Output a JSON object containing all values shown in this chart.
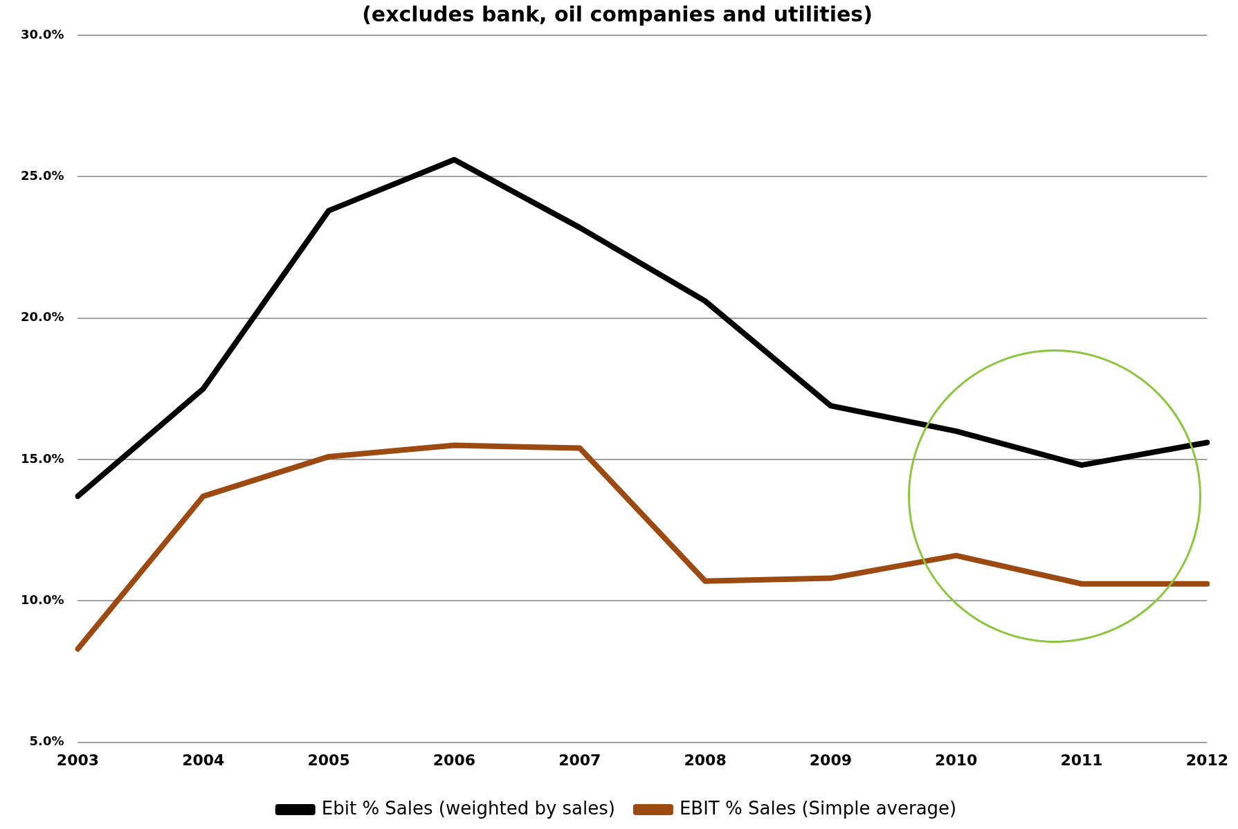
{
  "chart_data": {
    "type": "line",
    "title": "(excludes bank, oil companies and utilities)",
    "categories": [
      "2003",
      "2004",
      "2005",
      "2006",
      "2007",
      "2008",
      "2009",
      "2010",
      "2011",
      "2012"
    ],
    "series": [
      {
        "name": "Ebit % Sales (weighted by sales)",
        "color": "#000000",
        "values": [
          13.7,
          17.5,
          23.8,
          25.6,
          23.2,
          20.6,
          16.9,
          16.0,
          14.8,
          15.6
        ]
      },
      {
        "name": "EBIT % Sales (Simple average)",
        "color": "#9c4a12",
        "values": [
          8.3,
          13.7,
          15.1,
          15.5,
          15.4,
          10.7,
          10.8,
          11.6,
          10.6,
          10.6
        ]
      }
    ],
    "ylim": [
      5,
      30
    ],
    "yticks": [
      {
        "value": 5,
        "label": "5.0%"
      },
      {
        "value": 10,
        "label": "10.0%"
      },
      {
        "value": 15,
        "label": "15.0%"
      },
      {
        "value": 20,
        "label": "20.0%"
      },
      {
        "value": 25,
        "label": "25.0%"
      },
      {
        "value": 30,
        "label": "30.0%"
      }
    ],
    "grid": "y",
    "legend": "bottom",
    "marker": "none",
    "line_style": "solid"
  }
}
